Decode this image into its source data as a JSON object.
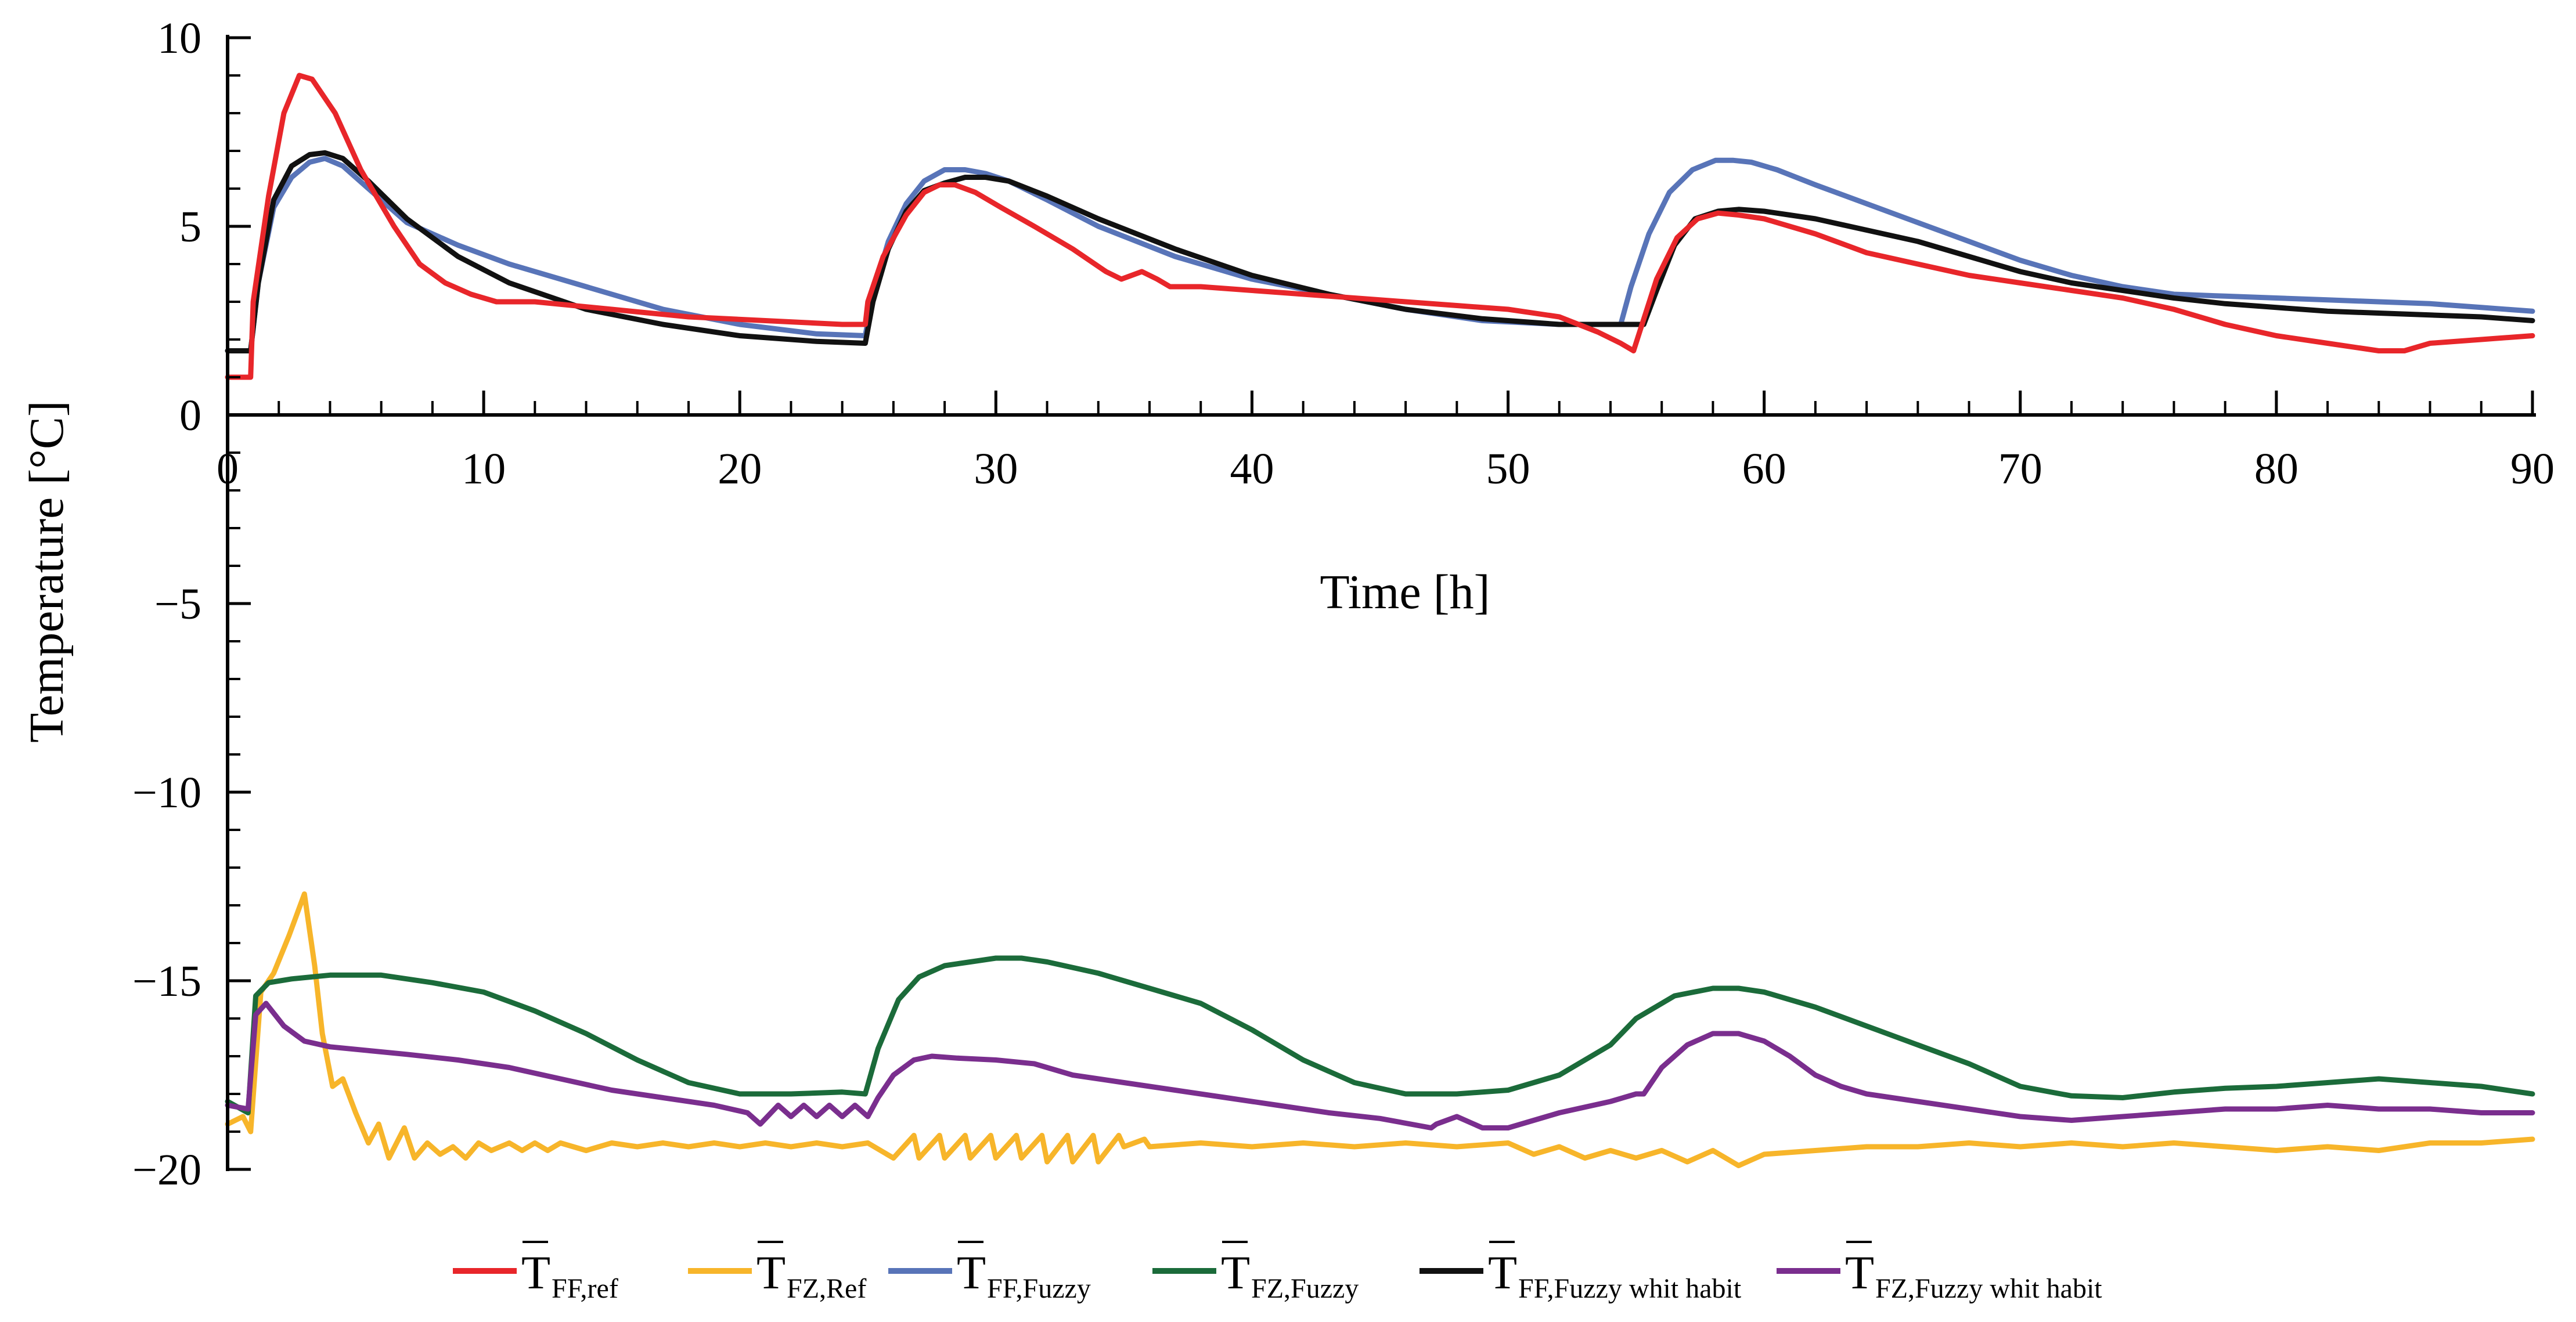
{
  "chart_data": {
    "type": "line",
    "title": "",
    "xlabel": "Time [h]",
    "ylabel": "Temperature [°C]",
    "xlim": [
      0,
      90
    ],
    "ylim": [
      -20,
      10
    ],
    "xticks": [
      0,
      10,
      20,
      30,
      40,
      50,
      60,
      70,
      80,
      90
    ],
    "yticks": [
      10,
      5,
      0,
      -5,
      -10,
      -15,
      -20
    ],
    "xtick_labels": [
      "0",
      "10",
      "20",
      "30",
      "40",
      "50",
      "60",
      "70",
      "80",
      "90"
    ],
    "ytick_labels": [
      "10",
      "5",
      "0",
      "−5",
      "−10",
      "−15",
      "−20"
    ],
    "grid": false,
    "legend_position": "bottom",
    "series": [
      {
        "name": "T FF,ref",
        "legend_main": "T",
        "legend_sub": "FF,ref",
        "color": "#e8262a",
        "x": [
          0,
          0.9,
          1.0,
          1.6,
          2.2,
          2.8,
          3.3,
          4.2,
          5.2,
          6.5,
          7.5,
          8.5,
          9.5,
          10.5,
          12,
          15,
          18,
          21,
          24,
          24.9,
          25.0,
          25.6,
          26.5,
          27.2,
          27.8,
          28.4,
          29.2,
          30.2,
          31.5,
          33,
          34.3,
          34.9,
          35.7,
          36.3,
          36.8,
          38,
          40,
          42,
          44,
          46,
          48,
          50,
          52,
          53.5,
          54.4,
          54.9,
          55.8,
          56.6,
          57.4,
          58.2,
          59.0,
          60.0,
          62,
          64,
          66,
          68,
          70,
          72,
          74,
          76,
          78,
          80,
          82,
          84,
          85,
          86,
          88,
          90
        ],
        "values": [
          1.0,
          1.0,
          3.0,
          5.8,
          8.0,
          9.0,
          8.9,
          8.0,
          6.5,
          5.0,
          4.0,
          3.5,
          3.2,
          3.0,
          3.0,
          2.8,
          2.6,
          2.5,
          2.4,
          2.4,
          3.0,
          4.2,
          5.3,
          5.9,
          6.1,
          6.1,
          5.9,
          5.5,
          5.0,
          4.4,
          3.8,
          3.6,
          3.8,
          3.6,
          3.4,
          3.4,
          3.3,
          3.2,
          3.1,
          3.0,
          2.9,
          2.8,
          2.6,
          2.2,
          1.9,
          1.7,
          3.6,
          4.7,
          5.2,
          5.35,
          5.3,
          5.2,
          4.8,
          4.3,
          4.0,
          3.7,
          3.5,
          3.3,
          3.1,
          2.8,
          2.4,
          2.1,
          1.9,
          1.7,
          1.7,
          1.9,
          2.0,
          2.1
        ]
      },
      {
        "name": "T FZ,Ref",
        "legend_main": "T",
        "legend_sub": "FZ,Ref",
        "color": "#f7b52a",
        "x": [
          0,
          0.6,
          0.9,
          1.3,
          1.8,
          2.4,
          3.0,
          3.4,
          3.7,
          4.1,
          4.5,
          5.0,
          5.5,
          5.9,
          6.3,
          6.9,
          7.3,
          7.8,
          8.3,
          8.8,
          9.3,
          9.8,
          10.3,
          11.0,
          11.5,
          12.0,
          12.5,
          13,
          14,
          15,
          16,
          17,
          18,
          19,
          20,
          21,
          22,
          23,
          24,
          25,
          26,
          26.8,
          27,
          27.8,
          28,
          28.8,
          29,
          29.8,
          30,
          30.8,
          31,
          31.8,
          32,
          32.8,
          33,
          33.8,
          34,
          34.8,
          35,
          35.8,
          36,
          38,
          40,
          42,
          44,
          46,
          48,
          50,
          51,
          52,
          53,
          54,
          55,
          56,
          57,
          58,
          59,
          60,
          62,
          64,
          66,
          68,
          70,
          72,
          74,
          76,
          78,
          80,
          82,
          84,
          86,
          88,
          90
        ],
        "values": [
          -18.8,
          -18.6,
          -19.0,
          -15.3,
          -14.8,
          -13.8,
          -12.7,
          -14.6,
          -16.4,
          -17.8,
          -17.6,
          -18.5,
          -19.3,
          -18.8,
          -19.7,
          -18.9,
          -19.7,
          -19.3,
          -19.6,
          -19.4,
          -19.7,
          -19.3,
          -19.5,
          -19.3,
          -19.5,
          -19.3,
          -19.5,
          -19.3,
          -19.5,
          -19.3,
          -19.4,
          -19.3,
          -19.4,
          -19.3,
          -19.4,
          -19.3,
          -19.4,
          -19.3,
          -19.4,
          -19.3,
          -19.7,
          -19.1,
          -19.7,
          -19.1,
          -19.7,
          -19.1,
          -19.7,
          -19.1,
          -19.7,
          -19.1,
          -19.7,
          -19.1,
          -19.8,
          -19.1,
          -19.8,
          -19.1,
          -19.8,
          -19.1,
          -19.4,
          -19.2,
          -19.4,
          -19.3,
          -19.4,
          -19.3,
          -19.4,
          -19.3,
          -19.4,
          -19.3,
          -19.6,
          -19.4,
          -19.7,
          -19.5,
          -19.7,
          -19.5,
          -19.8,
          -19.5,
          -19.9,
          -19.6,
          -19.5,
          -19.4,
          -19.4,
          -19.3,
          -19.4,
          -19.3,
          -19.4,
          -19.3,
          -19.4,
          -19.5,
          -19.4,
          -19.5,
          -19.3,
          -19.3,
          -19.2
        ]
      },
      {
        "name": "T FF,Fuzzy",
        "legend_main": "T",
        "legend_sub": "FF,Fuzzy",
        "color": "#5874b8",
        "x": [
          0,
          0.9,
          1.2,
          1.8,
          2.5,
          3.2,
          3.8,
          4.5,
          5.5,
          7,
          9,
          11,
          14,
          17,
          20,
          23,
          24.9,
          25.2,
          25.8,
          26.5,
          27.2,
          28.0,
          28.8,
          29.6,
          30.5,
          32,
          34,
          37,
          40,
          43,
          46,
          49,
          52,
          54.4,
          54.8,
          55.5,
          56.3,
          57.2,
          58.1,
          58.8,
          59.5,
          60.5,
          62,
          64,
          66,
          68,
          70,
          72,
          74,
          76,
          78,
          80,
          82,
          84,
          86,
          88,
          90
        ],
        "values": [
          1.7,
          1.7,
          3.5,
          5.5,
          6.3,
          6.7,
          6.8,
          6.6,
          6.0,
          5.1,
          4.5,
          4.0,
          3.4,
          2.8,
          2.4,
          2.15,
          2.1,
          3.2,
          4.6,
          5.6,
          6.2,
          6.5,
          6.5,
          6.4,
          6.2,
          5.7,
          5.0,
          4.2,
          3.6,
          3.2,
          2.8,
          2.5,
          2.4,
          2.4,
          3.4,
          4.8,
          5.9,
          6.5,
          6.75,
          6.75,
          6.7,
          6.5,
          6.1,
          5.6,
          5.1,
          4.6,
          4.1,
          3.7,
          3.4,
          3.2,
          3.15,
          3.1,
          3.05,
          3.0,
          2.95,
          2.85,
          2.75
        ]
      },
      {
        "name": "T FZ,Fuzzy",
        "legend_main": "T",
        "legend_sub": "FZ,Fuzzy",
        "color": "#1b6b3a",
        "x": [
          0,
          0.8,
          1.1,
          1.6,
          2.5,
          4,
          6,
          8,
          10,
          12,
          14,
          16,
          18,
          20,
          22,
          24,
          24.9,
          25.4,
          26.2,
          27,
          28,
          29,
          30,
          31,
          32,
          34,
          36,
          38,
          40,
          42,
          44,
          46,
          48,
          50,
          52,
          54,
          55,
          56.5,
          58,
          59,
          60,
          61,
          62,
          64,
          66,
          68,
          70,
          72,
          74,
          76,
          78,
          80,
          82,
          84,
          86,
          88,
          90
        ],
        "values": [
          -18.2,
          -18.5,
          -15.4,
          -15.05,
          -14.95,
          -14.85,
          -14.85,
          -15.05,
          -15.3,
          -15.8,
          -16.4,
          -17.1,
          -17.7,
          -18.0,
          -18.0,
          -17.95,
          -18.0,
          -16.8,
          -15.5,
          -14.9,
          -14.6,
          -14.5,
          -14.4,
          -14.4,
          -14.5,
          -14.8,
          -15.2,
          -15.6,
          -16.3,
          -17.1,
          -17.7,
          -18.0,
          -18.0,
          -17.9,
          -17.5,
          -16.7,
          -16.0,
          -15.4,
          -15.2,
          -15.2,
          -15.3,
          -15.5,
          -15.7,
          -16.2,
          -16.7,
          -17.2,
          -17.8,
          -18.05,
          -18.1,
          -17.95,
          -17.85,
          -17.8,
          -17.7,
          -17.6,
          -17.7,
          -17.8,
          -18.0
        ]
      },
      {
        "name": "T FF,Fuzzy whit habit",
        "legend_main": "T",
        "legend_sub": "FF,Fuzzy whit habit",
        "color": "#111111",
        "x": [
          0,
          0.9,
          1.2,
          1.8,
          2.5,
          3.2,
          3.8,
          4.5,
          5.5,
          7,
          9,
          11,
          14,
          17,
          20,
          23,
          24.9,
          25.2,
          25.8,
          26.5,
          27.2,
          28.0,
          28.8,
          29.6,
          30.5,
          32,
          34,
          37,
          40,
          43,
          46,
          49,
          52,
          55.3,
          55.8,
          56.5,
          57.3,
          58.2,
          59.0,
          60,
          61,
          62,
          64,
          66,
          68,
          70,
          72,
          74,
          76,
          78,
          80,
          82,
          84,
          86,
          88,
          90
        ],
        "values": [
          1.7,
          1.7,
          3.5,
          5.7,
          6.6,
          6.9,
          6.95,
          6.8,
          6.2,
          5.2,
          4.2,
          3.5,
          2.8,
          2.4,
          2.1,
          1.95,
          1.9,
          3.0,
          4.4,
          5.4,
          5.95,
          6.15,
          6.3,
          6.3,
          6.2,
          5.8,
          5.2,
          4.4,
          3.7,
          3.2,
          2.8,
          2.55,
          2.4,
          2.4,
          3.3,
          4.5,
          5.2,
          5.4,
          5.45,
          5.4,
          5.3,
          5.2,
          4.9,
          4.6,
          4.2,
          3.8,
          3.5,
          3.3,
          3.1,
          2.95,
          2.85,
          2.75,
          2.7,
          2.65,
          2.6,
          2.5
        ]
      },
      {
        "name": "T FZ,Fuzzy whit habit",
        "legend_main": "T",
        "legend_sub": "FZ,Fuzzy whit habit",
        "color": "#7a2e8e",
        "x": [
          0,
          0.8,
          1.1,
          1.5,
          2.2,
          3,
          4,
          5.5,
          7,
          9,
          11,
          13,
          15,
          17,
          19,
          20.3,
          20.8,
          21.5,
          22,
          22.5,
          23,
          23.5,
          24,
          24.5,
          25,
          25.4,
          26,
          26.8,
          27.5,
          28.5,
          30,
          31.5,
          33,
          35,
          37,
          39,
          41,
          43,
          45,
          47,
          47.2,
          48,
          49,
          50,
          51,
          52,
          54,
          55,
          55.3,
          56,
          57,
          58,
          59,
          59.5,
          60,
          61,
          62,
          63,
          64,
          66,
          68,
          70,
          72,
          74,
          76,
          78,
          80,
          82,
          84,
          86,
          88,
          90
        ],
        "values": [
          -18.3,
          -18.4,
          -15.9,
          -15.6,
          -16.2,
          -16.6,
          -16.75,
          -16.85,
          -16.95,
          -17.1,
          -17.3,
          -17.6,
          -17.9,
          -18.1,
          -18.3,
          -18.5,
          -18.8,
          -18.3,
          -18.6,
          -18.3,
          -18.6,
          -18.3,
          -18.6,
          -18.3,
          -18.6,
          -18.1,
          -17.5,
          -17.1,
          -17.0,
          -17.05,
          -17.1,
          -17.2,
          -17.5,
          -17.7,
          -17.9,
          -18.1,
          -18.3,
          -18.5,
          -18.65,
          -18.9,
          -18.8,
          -18.6,
          -18.9,
          -18.9,
          -18.7,
          -18.5,
          -18.2,
          -18.0,
          -18.0,
          -17.3,
          -16.7,
          -16.4,
          -16.4,
          -16.5,
          -16.6,
          -17.0,
          -17.5,
          -17.8,
          -18.0,
          -18.2,
          -18.4,
          -18.6,
          -18.7,
          -18.6,
          -18.5,
          -18.4,
          -18.4,
          -18.3,
          -18.4,
          -18.4,
          -18.5,
          -18.5
        ]
      }
    ]
  }
}
